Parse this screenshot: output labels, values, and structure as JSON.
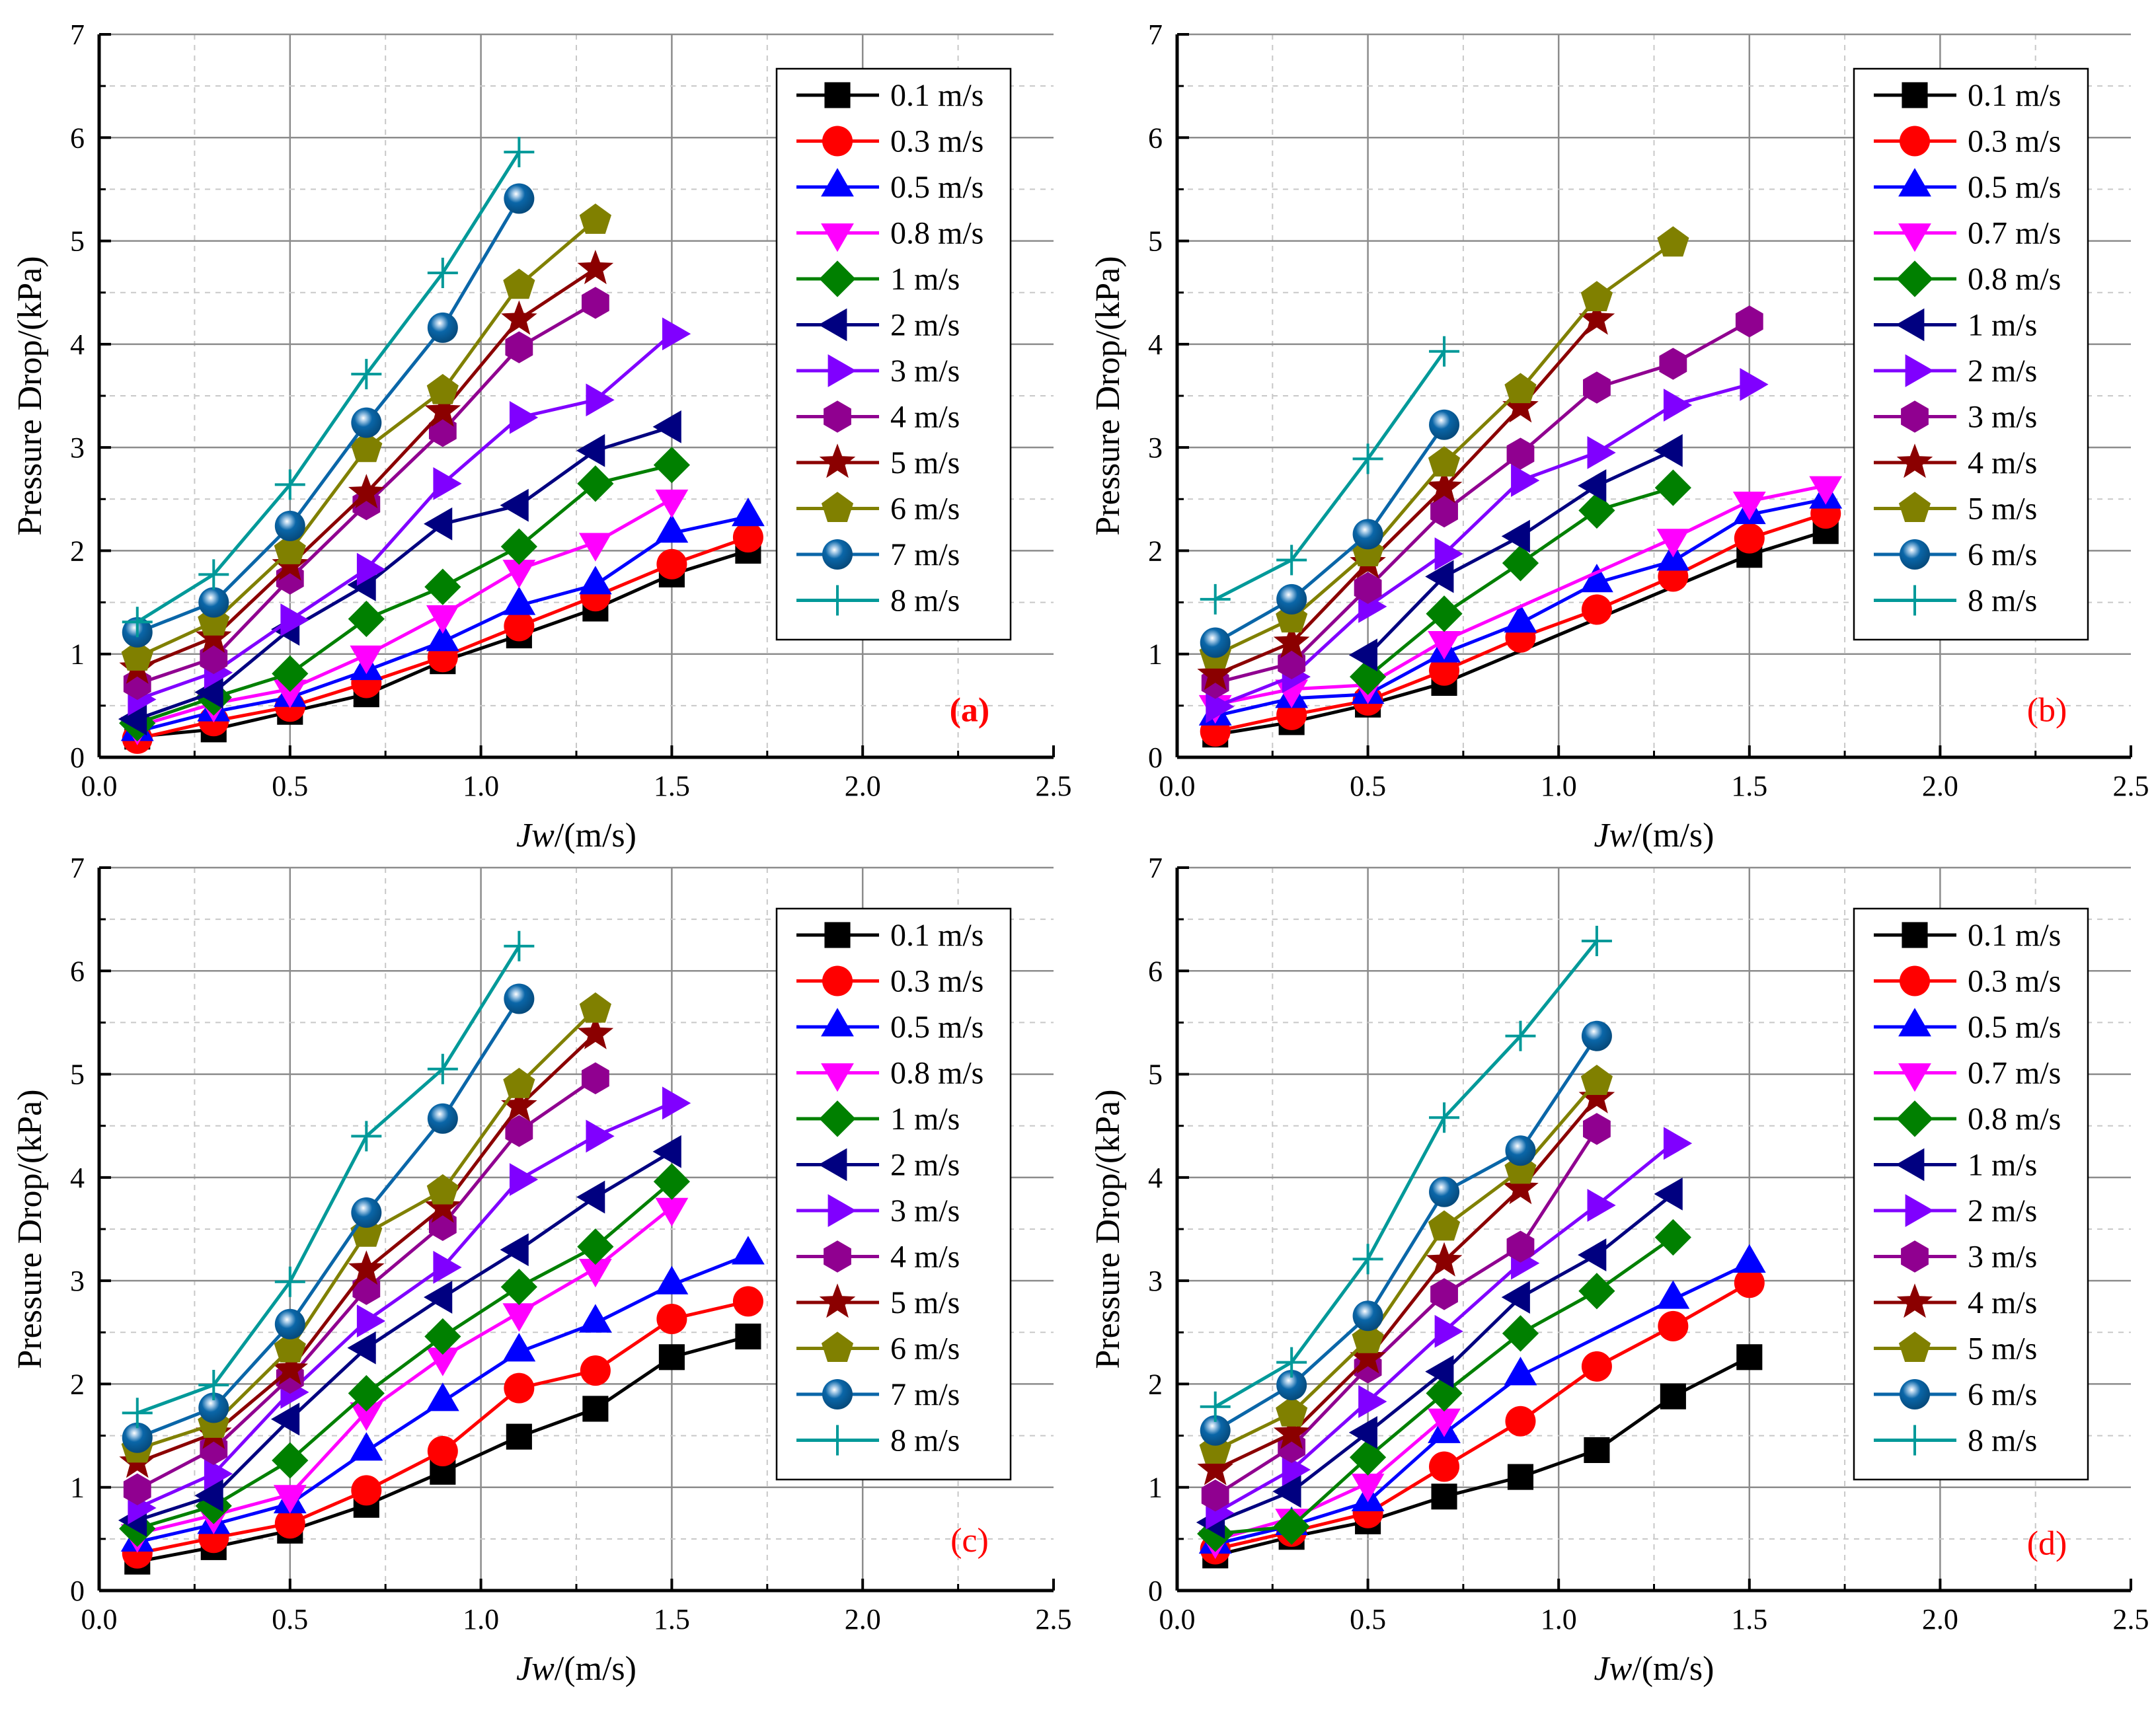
{
  "chart_data": [
    {
      "type": "line",
      "panel_label": "(a)",
      "xlabel_italic": "Jw",
      "xlabel_rest": "/(m/s)",
      "ylabel": "Pressure Drop/(kPa)",
      "xlim": [
        0,
        2.5
      ],
      "ylim": [
        0,
        7
      ],
      "xticks": [
        "0.0",
        "0.5",
        "1.0",
        "1.5",
        "2.0",
        "2.5"
      ],
      "yticks": [
        "0",
        "1",
        "2",
        "3",
        "4",
        "5",
        "6",
        "7"
      ],
      "grid": true,
      "legend": "top-right",
      "x": [
        0.1,
        0.3,
        0.5,
        0.7,
        0.9,
        1.1,
        1.3,
        1.5,
        1.7
      ],
      "series": [
        {
          "name": "0.1 m/s",
          "values": [
            0.2,
            0.27,
            0.44,
            0.61,
            0.93,
            1.18,
            1.44,
            1.77,
            2.0
          ]
        },
        {
          "name": "0.3 m/s",
          "values": [
            0.18,
            0.35,
            0.49,
            0.72,
            0.97,
            1.27,
            1.56,
            1.87,
            2.13
          ]
        },
        {
          "name": "0.5 m/s",
          "values": [
            0.25,
            0.44,
            0.58,
            0.84,
            1.12,
            1.47,
            1.67,
            2.17,
            2.33
          ]
        },
        {
          "name": "0.8 m/s",
          "values": [
            0.3,
            0.52,
            0.66,
            0.99,
            1.38,
            1.82,
            2.08,
            2.5,
            null
          ]
        },
        {
          "name": "1 m/s",
          "values": [
            0.33,
            0.58,
            0.81,
            1.34,
            1.65,
            2.04,
            2.65,
            2.83,
            null
          ]
        },
        {
          "name": "2 m/s",
          "values": [
            0.37,
            0.63,
            1.24,
            1.67,
            2.26,
            2.44,
            2.97,
            3.2,
            null
          ]
        },
        {
          "name": "3 m/s",
          "values": [
            0.56,
            0.82,
            1.33,
            1.82,
            2.65,
            3.29,
            3.46,
            4.1,
            null
          ]
        },
        {
          "name": "4 m/s",
          "values": [
            0.71,
            0.96,
            1.73,
            2.45,
            3.16,
            3.97,
            4.4,
            null,
            null
          ]
        },
        {
          "name": "5 m/s",
          "values": [
            0.86,
            1.16,
            1.86,
            2.56,
            3.35,
            4.24,
            4.73,
            null,
            null
          ]
        },
        {
          "name": "6 m/s",
          "values": [
            0.97,
            1.31,
            2.0,
            2.99,
            3.55,
            4.57,
            5.2,
            null,
            null
          ]
        },
        {
          "name": "7 m/s",
          "values": [
            1.21,
            1.5,
            2.24,
            3.24,
            4.16,
            5.41,
            null,
            null,
            null
          ]
        },
        {
          "name": "8 m/s",
          "values": [
            1.31,
            1.77,
            2.64,
            3.71,
            4.69,
            5.86,
            null,
            null,
            null
          ]
        }
      ]
    },
    {
      "type": "line",
      "panel_label": "(b)",
      "xlabel_italic": "Jw",
      "xlabel_rest": "/(m/s)",
      "ylabel": "Pressure Drop/(kPa)",
      "xlim": [
        0,
        2.5
      ],
      "ylim": [
        0,
        7
      ],
      "xticks": [
        "0.0",
        "0.5",
        "1.0",
        "1.5",
        "2.0",
        "2.5"
      ],
      "yticks": [
        "0",
        "1",
        "2",
        "3",
        "4",
        "5",
        "6",
        "7"
      ],
      "grid": true,
      "legend": "top-right",
      "x": [
        0.1,
        0.3,
        0.5,
        0.7,
        0.9,
        1.1,
        1.3,
        1.5,
        1.7
      ],
      "series": [
        {
          "name": "0.1 m/s",
          "values": [
            0.22,
            0.34,
            0.51,
            0.72,
            null,
            null,
            null,
            1.96,
            2.19
          ]
        },
        {
          "name": "0.3 m/s",
          "values": [
            0.25,
            0.41,
            0.55,
            0.84,
            1.16,
            1.43,
            1.75,
            2.12,
            2.36
          ]
        },
        {
          "name": "0.5 m/s",
          "values": [
            0.4,
            0.57,
            0.61,
            1.01,
            1.3,
            1.69,
            1.9,
            2.35,
            2.5
          ]
        },
        {
          "name": "0.7 m/s",
          "values": [
            0.51,
            0.66,
            0.7,
            1.13,
            null,
            null,
            2.12,
            2.48,
            2.63
          ]
        },
        {
          "name": "0.8 m/s",
          "values": [
            null,
            null,
            0.78,
            1.39,
            1.88,
            2.39,
            2.61,
            null,
            null
          ]
        },
        {
          "name": "1 m/s",
          "values": [
            null,
            null,
            0.99,
            1.75,
            2.14,
            2.63,
            2.97,
            null,
            null
          ]
        },
        {
          "name": "2 m/s",
          "values": [
            0.49,
            0.78,
            1.46,
            1.97,
            2.68,
            2.95,
            3.41,
            3.61,
            null
          ]
        },
        {
          "name": "3 m/s",
          "values": [
            0.72,
            0.91,
            1.64,
            2.38,
            2.94,
            3.58,
            3.81,
            4.22,
            null
          ]
        },
        {
          "name": "4 m/s",
          "values": [
            0.8,
            1.11,
            1.88,
            2.61,
            3.39,
            4.24,
            null,
            null,
            null
          ]
        },
        {
          "name": "5 m/s",
          "values": [
            0.99,
            1.34,
            1.98,
            2.85,
            3.56,
            4.45,
            4.98,
            null,
            null
          ]
        },
        {
          "name": "6 m/s",
          "values": [
            1.11,
            1.53,
            2.16,
            3.22,
            null,
            null,
            null,
            null,
            null
          ]
        },
        {
          "name": "8 m/s",
          "values": [
            1.53,
            1.91,
            2.89,
            3.93,
            null,
            null,
            null,
            null,
            null
          ]
        }
      ]
    },
    {
      "type": "line",
      "panel_label": "(c)",
      "xlabel_italic": "Jw",
      "xlabel_rest": "/(m/s)",
      "ylabel": "Pressure Drop/(kPa)",
      "xlim": [
        0,
        2.5
      ],
      "ylim": [
        0,
        7
      ],
      "xticks": [
        "0.0",
        "0.5",
        "1.0",
        "1.5",
        "2.0",
        "2.5"
      ],
      "yticks": [
        "0",
        "1",
        "2",
        "3",
        "4",
        "5",
        "6",
        "7"
      ],
      "grid": true,
      "legend": "top-right",
      "x": [
        0.1,
        0.3,
        0.5,
        0.7,
        0.9,
        1.1,
        1.3,
        1.5,
        1.7
      ],
      "series": [
        {
          "name": "0.1 m/s",
          "values": [
            0.28,
            0.42,
            0.58,
            0.83,
            1.15,
            1.49,
            1.76,
            2.26,
            2.46
          ]
        },
        {
          "name": "0.3 m/s",
          "values": [
            0.36,
            0.51,
            0.65,
            0.97,
            1.35,
            1.96,
            2.13,
            2.63,
            2.8
          ]
        },
        {
          "name": "0.5 m/s",
          "values": [
            0.47,
            0.64,
            0.84,
            1.35,
            1.83,
            2.31,
            2.59,
            2.96,
            3.25
          ]
        },
        {
          "name": "0.8 m/s",
          "values": [
            0.55,
            0.73,
            0.93,
            1.73,
            2.26,
            2.69,
            3.12,
            3.71,
            null
          ]
        },
        {
          "name": "1 m/s",
          "values": [
            0.6,
            0.82,
            1.26,
            1.91,
            2.46,
            2.94,
            3.33,
            3.96,
            null
          ]
        },
        {
          "name": "2 m/s",
          "values": [
            0.68,
            0.92,
            1.66,
            2.35,
            2.84,
            3.3,
            3.81,
            4.25,
            null
          ]
        },
        {
          "name": "3 m/s",
          "values": [
            0.8,
            1.13,
            1.92,
            2.61,
            3.13,
            3.98,
            4.4,
            4.72,
            null
          ]
        },
        {
          "name": "4 m/s",
          "values": [
            0.98,
            1.37,
            2.06,
            2.92,
            3.54,
            4.45,
            4.96,
            null,
            null
          ]
        },
        {
          "name": "5 m/s",
          "values": [
            1.24,
            1.52,
            2.14,
            3.11,
            3.71,
            4.69,
            5.39,
            null,
            null
          ]
        },
        {
          "name": "6 m/s",
          "values": [
            1.37,
            1.61,
            2.34,
            3.46,
            3.87,
            4.9,
            5.63,
            null,
            null
          ]
        },
        {
          "name": "7 m/s",
          "values": [
            1.48,
            1.77,
            2.58,
            3.66,
            4.57,
            5.73,
            null,
            null,
            null
          ]
        },
        {
          "name": "8 m/s",
          "values": [
            1.72,
            1.99,
            2.99,
            4.4,
            5.05,
            6.24,
            null,
            null,
            null
          ]
        }
      ]
    },
    {
      "type": "line",
      "panel_label": "(d)",
      "xlabel_italic": "Jw",
      "xlabel_rest": "/(m/s)",
      "ylabel": "Pressure Drop/(kPa)",
      "xlim": [
        0,
        2.5
      ],
      "ylim": [
        0,
        7
      ],
      "xticks": [
        "0.0",
        "0.5",
        "1.0",
        "1.5",
        "2.0",
        "2.5"
      ],
      "yticks": [
        "0",
        "1",
        "2",
        "3",
        "4",
        "5",
        "6",
        "7"
      ],
      "grid": true,
      "legend": "top-right",
      "x": [
        0.1,
        0.3,
        0.5,
        0.7,
        0.9,
        1.1,
        1.3,
        1.5,
        1.7
      ],
      "series": [
        {
          "name": "0.1 m/s",
          "values": [
            0.34,
            0.52,
            0.67,
            0.91,
            1.1,
            1.36,
            1.88,
            2.26,
            null
          ]
        },
        {
          "name": "0.3 m/s",
          "values": [
            0.4,
            0.57,
            0.75,
            1.2,
            1.64,
            2.17,
            2.56,
            2.98,
            null
          ]
        },
        {
          "name": "0.5 m/s",
          "values": [
            0.45,
            0.63,
            0.86,
            1.52,
            2.08,
            null,
            2.82,
            3.17,
            null
          ]
        },
        {
          "name": "0.7 m/s",
          "values": [
            0.49,
            0.7,
            1.04,
            1.67,
            null,
            null,
            null,
            null,
            null
          ]
        },
        {
          "name": "0.8 m/s",
          "values": [
            0.55,
            0.62,
            1.29,
            1.91,
            2.49,
            2.9,
            3.42,
            null,
            null
          ]
        },
        {
          "name": "1 m/s",
          "values": [
            0.66,
            0.96,
            1.53,
            2.12,
            2.84,
            3.25,
            3.84,
            null,
            null
          ]
        },
        {
          "name": "2 m/s",
          "values": [
            0.75,
            1.17,
            1.83,
            2.51,
            3.17,
            3.73,
            4.33,
            null,
            null
          ]
        },
        {
          "name": "3 m/s",
          "values": [
            0.92,
            1.39,
            2.16,
            2.87,
            3.33,
            4.47,
            null,
            null,
            null
          ]
        },
        {
          "name": "4 m/s",
          "values": [
            1.17,
            1.52,
            2.25,
            3.19,
            3.89,
            4.77,
            null,
            null,
            null
          ]
        },
        {
          "name": "5 m/s",
          "values": [
            1.36,
            1.72,
            2.43,
            3.52,
            4.07,
            4.93,
            null,
            null,
            null
          ]
        },
        {
          "name": "6 m/s",
          "values": [
            1.55,
            1.99,
            2.66,
            3.86,
            4.26,
            5.37,
            null,
            null,
            null
          ]
        },
        {
          "name": "8 m/s",
          "values": [
            1.78,
            2.21,
            3.21,
            4.58,
            5.37,
            6.29,
            null,
            null,
            null
          ]
        }
      ]
    }
  ],
  "series_styles": [
    {
      "marker": "square",
      "color": "#000000"
    },
    {
      "marker": "circle",
      "color": "#ff0000"
    },
    {
      "marker": "triangle-up",
      "color": "#0000ff"
    },
    {
      "marker": "triangle-down",
      "color": "#ff00ff"
    },
    {
      "marker": "diamond",
      "color": "#008000"
    },
    {
      "marker": "triangle-left",
      "color": "#000080"
    },
    {
      "marker": "triangle-right",
      "color": "#8000ff"
    },
    {
      "marker": "hexagon",
      "color": "#900090"
    },
    {
      "marker": "star",
      "color": "#8b0000"
    },
    {
      "marker": "pentagon",
      "color": "#808000"
    },
    {
      "marker": "ball",
      "color": "#0a66a8"
    },
    {
      "marker": "plus",
      "color": "#009999"
    }
  ],
  "panel_label_color": "#ff0000"
}
